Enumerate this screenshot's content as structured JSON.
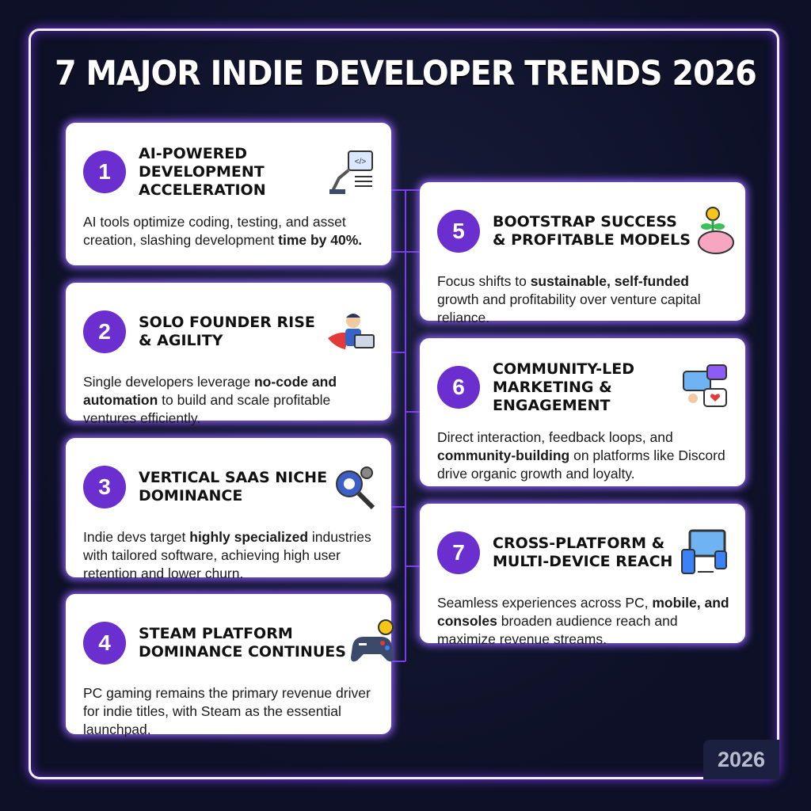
{
  "title": "7 MAJOR INDIE DEVELOPER TRENDS 2026",
  "cards": [
    {
      "number": "1",
      "title_lines": [
        "AI-POWERED",
        "DEVELOPMENT",
        "ACCELERATION"
      ],
      "description": [
        {
          "text": "AI tools optimize coding, testing, and asset creation, slashing development ",
          "bold": false
        },
        {
          "text": "time by 40%.",
          "bold": true
        }
      ]
    },
    {
      "number": "2",
      "title_lines": [
        "SOLO FOUNDER RISE",
        "& AGILITY"
      ],
      "description": [
        {
          "text": "Single developers leverage ",
          "bold": false
        },
        {
          "text": "no-code and automation",
          "bold": true
        },
        {
          "text": " to build and scale profitable ventures efficiently.",
          "bold": false
        }
      ]
    },
    {
      "number": "3",
      "title_lines": [
        "VERTICAL SAAS NICHE",
        "DOMINANCE"
      ],
      "description": [
        {
          "text": "Indie devs target ",
          "bold": false
        },
        {
          "text": "highly specialized",
          "bold": true
        },
        {
          "text": " industries with tailored software, achieving high user retention and lower churn.",
          "bold": false
        }
      ]
    },
    {
      "number": "4",
      "title_lines": [
        "STEAM PLATFORM",
        "DOMINANCE CONTINUES"
      ],
      "description": [
        {
          "text": "PC gaming remains the primary revenue driver for indie titles, with Steam as the essential launchpad.",
          "bold": false
        }
      ]
    },
    {
      "number": "5",
      "title_lines": [
        "BOOTSTRAP SUCCESS",
        "& PROFITABLE MODELS"
      ],
      "description": [
        {
          "text": "Focus shifts to ",
          "bold": false
        },
        {
          "text": "sustainable, self-funded",
          "bold": true
        },
        {
          "text": " growth and profitability over venture capital reliance.",
          "bold": false
        }
      ]
    },
    {
      "number": "6",
      "title_lines": [
        "COMMUNITY-LED",
        "MARKETING &",
        "ENGAGEMENT"
      ],
      "description": [
        {
          "text": "Direct interaction, feedback loops, and ",
          "bold": false
        },
        {
          "text": "community-building",
          "bold": true
        },
        {
          "text": " on platforms like Discord drive organic growth and loyalty.",
          "bold": false
        }
      ]
    },
    {
      "number": "7",
      "title_lines": [
        "CROSS-PLATFORM &",
        "MULTI-DEVICE REACH"
      ],
      "description": [
        {
          "text": "Seamless experiences across PC, ",
          "bold": false
        },
        {
          "text": "mobile, and consoles",
          "bold": true
        },
        {
          "text": " broaden audience reach and maximize revenue streams.",
          "bold": false
        }
      ]
    }
  ],
  "footer": "2026"
}
